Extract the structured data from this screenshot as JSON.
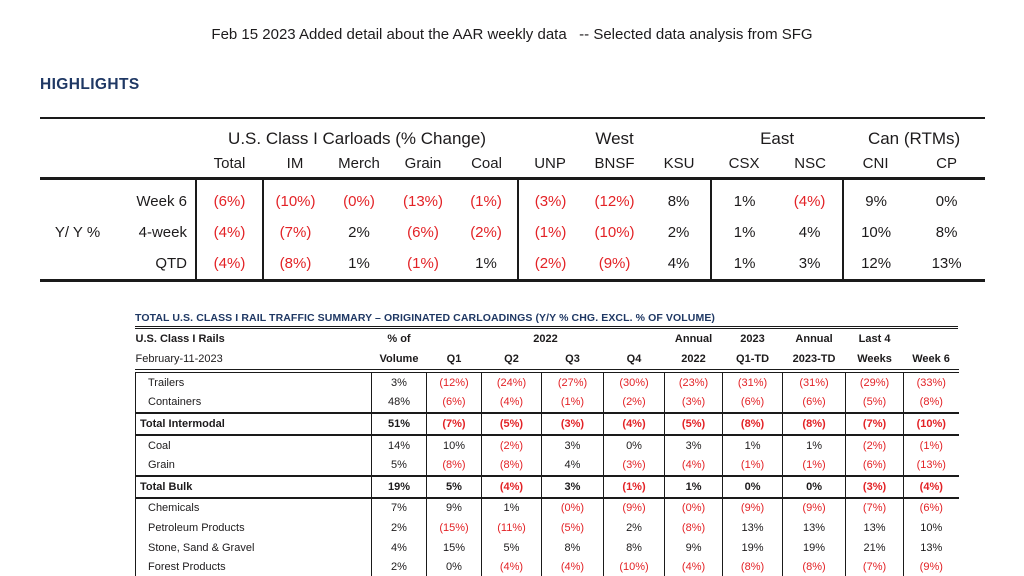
{
  "page": {
    "title": "Feb 15 2023 Added detail about the AAR weekly data   -- Selected data analysis from SFG",
    "section_heading": "HIGHLIGHTS"
  },
  "colors": {
    "negative_red": "#e32226",
    "text_black": "#1d1b1c",
    "heading_navy": "#1f3864",
    "rule_black": "#1a1a1a",
    "background": "#ffffff"
  },
  "highlights_table": {
    "row_axis_label": "Y/ Y %",
    "groups": [
      {
        "label": "U.S. Class I Carloads (% Change)",
        "span": 5
      },
      {
        "label": "West",
        "span": 3
      },
      {
        "label": "East",
        "span": 2
      },
      {
        "label": "Can (RTMs)",
        "span": 2
      }
    ],
    "columns": [
      "Total",
      "IM",
      "Merch",
      "Grain",
      "Coal",
      "UNP",
      "BNSF",
      "KSU",
      "CSX",
      "NSC",
      "CNI",
      "CP"
    ],
    "rows": [
      {
        "label": "Week 6",
        "values": [
          "(6%)",
          "(10%)",
          "(0%)",
          "(13%)",
          "(1%)",
          "(3%)",
          "(12%)",
          "8%",
          "1%",
          "(4%)",
          "9%",
          "0%"
        ]
      },
      {
        "label": "4-week",
        "values": [
          "(4%)",
          "(7%)",
          "2%",
          "(6%)",
          "(2%)",
          "(1%)",
          "(10%)",
          "2%",
          "1%",
          "4%",
          "10%",
          "8%"
        ]
      },
      {
        "label": "QTD",
        "values": [
          "(4%)",
          "(8%)",
          "1%",
          "(1%)",
          "1%",
          "(2%)",
          "(9%)",
          "4%",
          "1%",
          "3%",
          "12%",
          "13%"
        ]
      }
    ]
  },
  "summary_table": {
    "title": "TOTAL U.S. CLASS I RAIL TRAFFIC SUMMARY – ORIGINATED CARLOADINGS (Y/Y % CHG. EXCL. % OF VOLUME)",
    "header": {
      "col1_line1": "U.S. Class I Rails",
      "col1_line2": "February-11-2023",
      "vol_line1": "% of",
      "vol_line2": "Volume",
      "year_group": "2022",
      "quarters": [
        "Q1",
        "Q2",
        "Q3",
        "Q4"
      ],
      "annual1_line1": "Annual",
      "annual1_line2": "2022",
      "ytd_line1": "2023",
      "ytd_line2": "Q1-TD",
      "annual2_line1": "Annual",
      "annual2_line2": "2023-TD",
      "last4_line1": "Last 4",
      "last4_line2": "Weeks",
      "week6_line2": "Week 6"
    },
    "rows": [
      {
        "label": "Trailers",
        "indent": true,
        "total": false,
        "values": [
          "3%",
          "(12%)",
          "(24%)",
          "(27%)",
          "(30%)",
          "(23%)",
          "(31%)",
          "(31%)",
          "(29%)",
          "(33%)"
        ]
      },
      {
        "label": "Containers",
        "indent": true,
        "total": false,
        "values": [
          "48%",
          "(6%)",
          "(4%)",
          "(1%)",
          "(2%)",
          "(3%)",
          "(6%)",
          "(6%)",
          "(5%)",
          "(8%)"
        ]
      },
      {
        "label": "Total Intermodal",
        "indent": false,
        "total": true,
        "values": [
          "51%",
          "(7%)",
          "(5%)",
          "(3%)",
          "(4%)",
          "(5%)",
          "(8%)",
          "(8%)",
          "(7%)",
          "(10%)"
        ]
      },
      {
        "label": "Coal",
        "indent": true,
        "total": false,
        "values": [
          "14%",
          "10%",
          "(2%)",
          "3%",
          "0%",
          "3%",
          "1%",
          "1%",
          "(2%)",
          "(1%)"
        ]
      },
      {
        "label": "Grain",
        "indent": true,
        "total": false,
        "values": [
          "5%",
          "(8%)",
          "(8%)",
          "4%",
          "(3%)",
          "(4%)",
          "(1%)",
          "(1%)",
          "(6%)",
          "(13%)"
        ]
      },
      {
        "label": "Total Bulk",
        "indent": false,
        "total": true,
        "values": [
          "19%",
          "5%",
          "(4%)",
          "3%",
          "(1%)",
          "1%",
          "0%",
          "0%",
          "(3%)",
          "(4%)"
        ]
      },
      {
        "label": "Chemicals",
        "indent": true,
        "total": false,
        "values": [
          "7%",
          "9%",
          "1%",
          "(0%)",
          "(9%)",
          "(0%)",
          "(9%)",
          "(9%)",
          "(7%)",
          "(6%)"
        ]
      },
      {
        "label": "Petroleum Products",
        "indent": true,
        "total": false,
        "values": [
          "2%",
          "(15%)",
          "(11%)",
          "(5%)",
          "2%",
          "(8%)",
          "13%",
          "13%",
          "13%",
          "10%"
        ]
      },
      {
        "label": "Stone, Sand & Gravel",
        "indent": true,
        "total": false,
        "values": [
          "4%",
          "15%",
          "5%",
          "8%",
          "8%",
          "9%",
          "19%",
          "19%",
          "21%",
          "13%"
        ]
      },
      {
        "label": "Forest Products",
        "indent": true,
        "total": false,
        "values": [
          "2%",
          "0%",
          "(4%)",
          "(4%)",
          "(10%)",
          "(4%)",
          "(8%)",
          "(8%)",
          "(7%)",
          "(9%)"
        ]
      }
    ]
  }
}
